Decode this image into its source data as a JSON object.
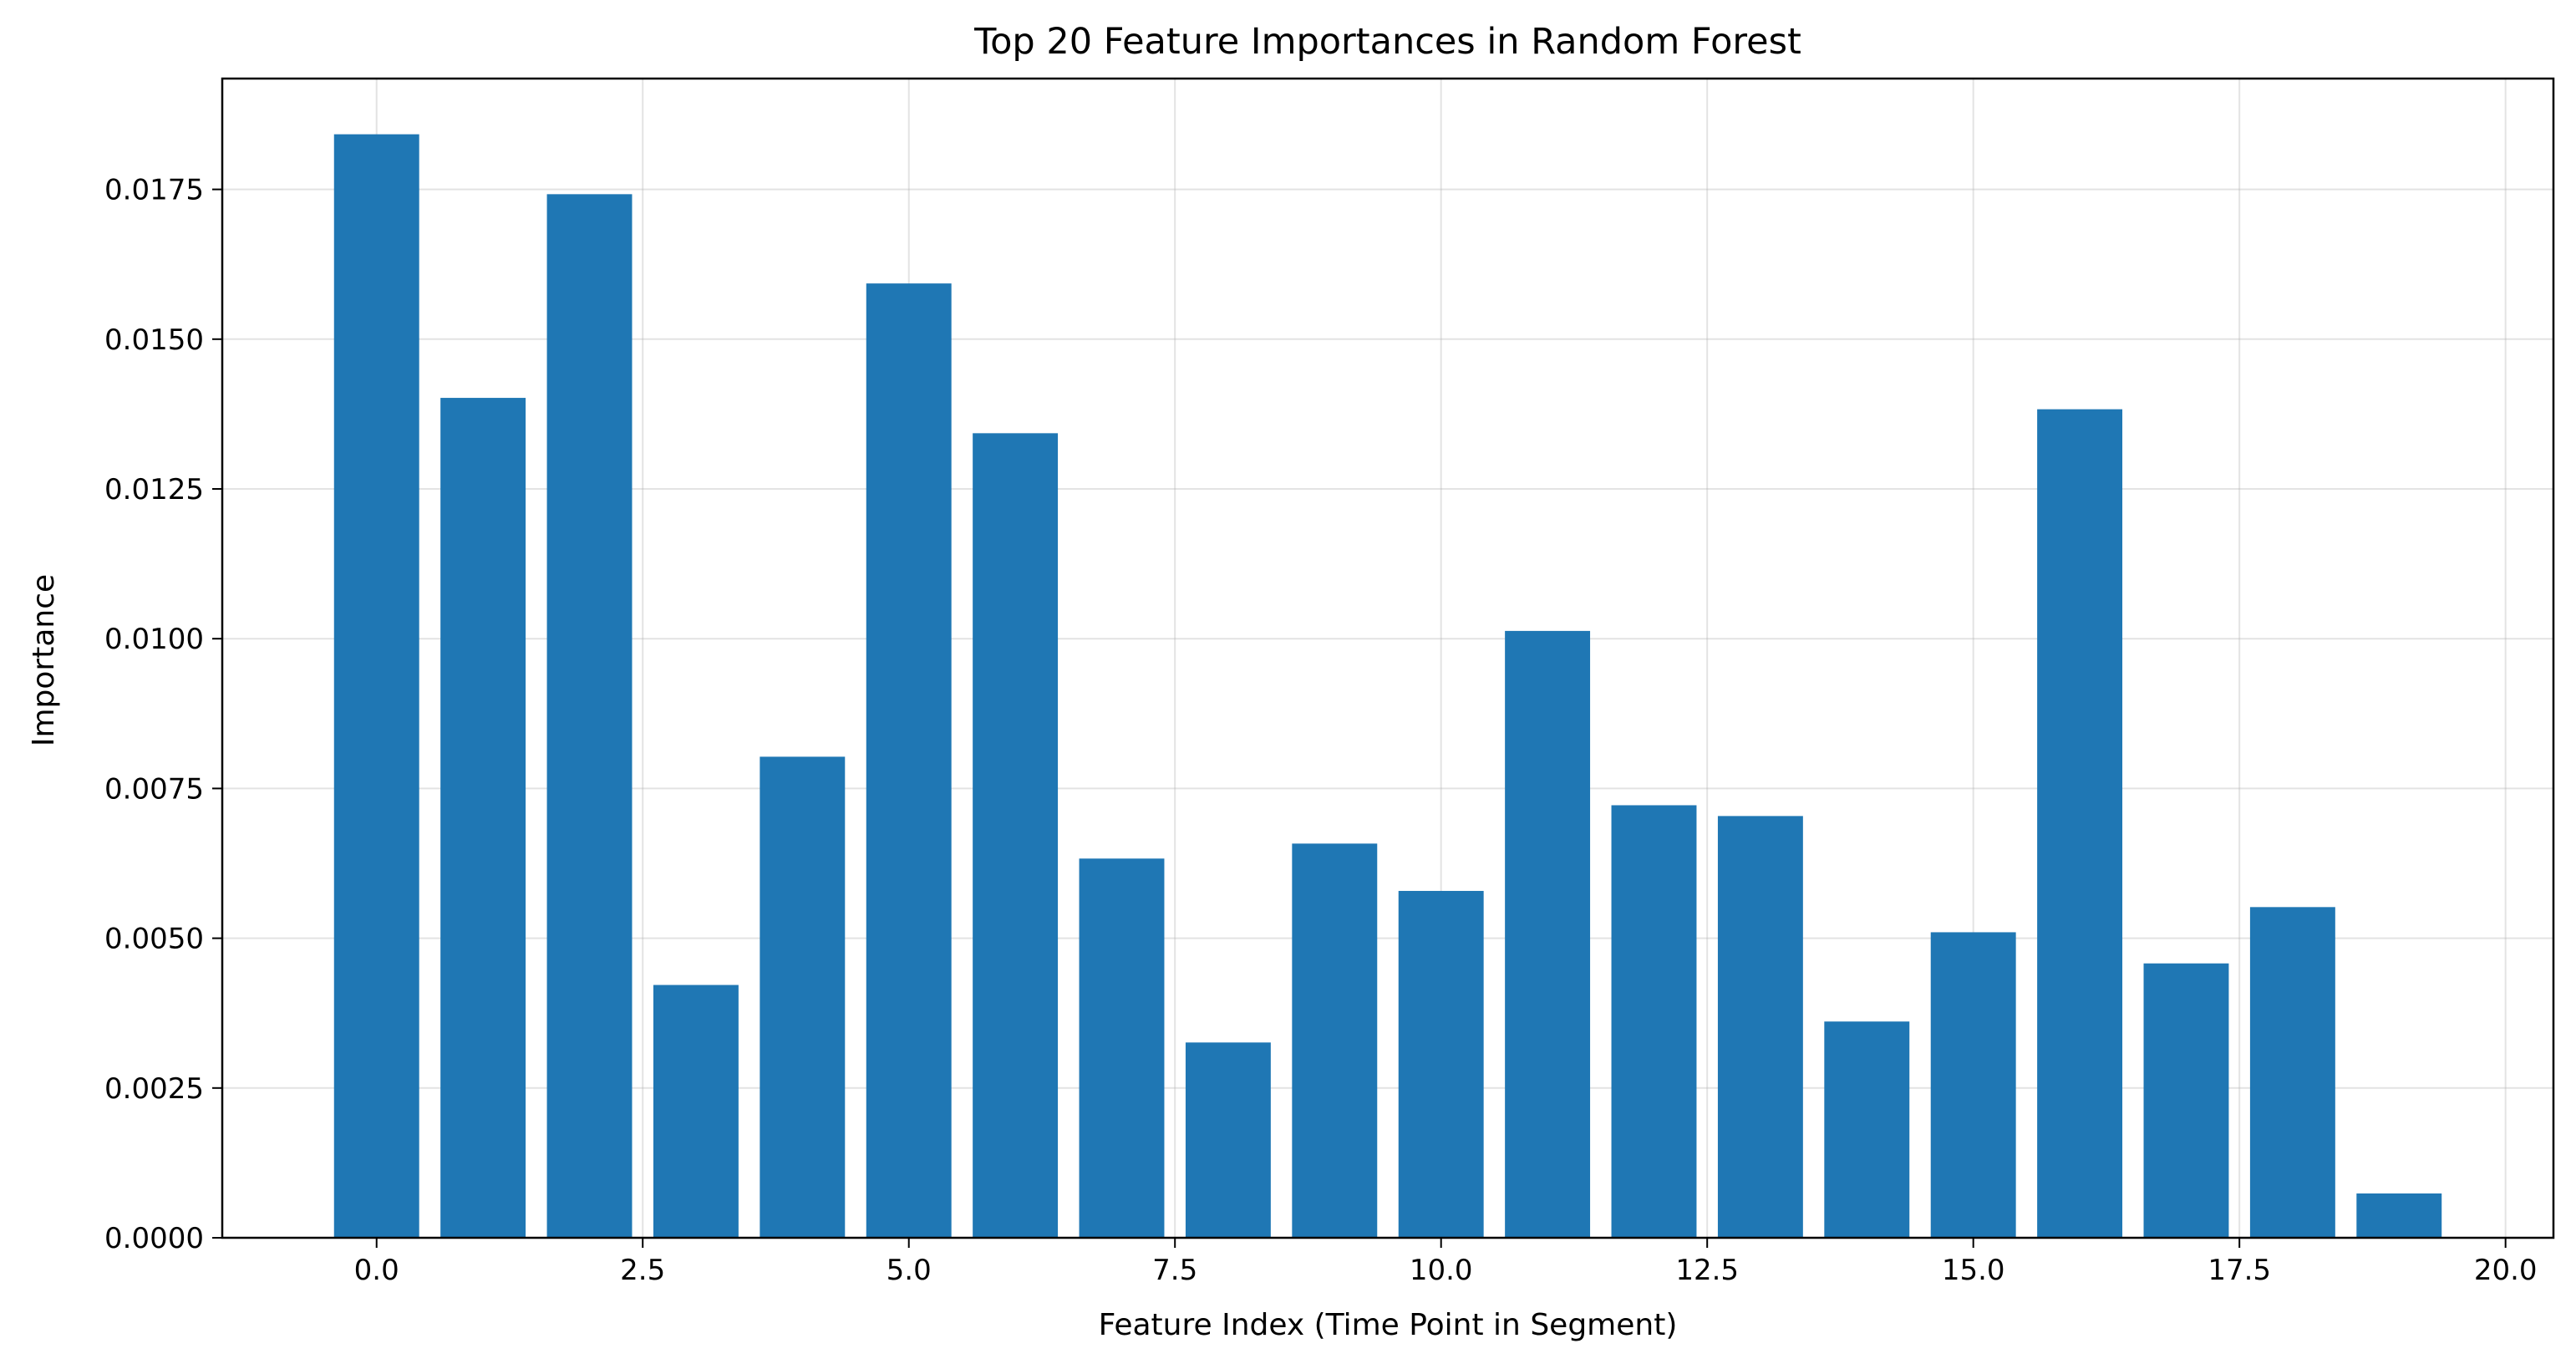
{
  "chart_data": {
    "type": "bar",
    "title": "Top 20 Feature Importances in Random Forest",
    "xlabel": "Feature Index (Time Point in Segment)",
    "ylabel": "Importance",
    "x": [
      0,
      1,
      2,
      3,
      4,
      5,
      6,
      7,
      8,
      9,
      10,
      11,
      12,
      13,
      14,
      15,
      16,
      17,
      18,
      19
    ],
    "values": [
      0.01842,
      0.01402,
      0.01742,
      0.00422,
      0.00803,
      0.01593,
      0.01343,
      0.00633,
      0.00326,
      0.00658,
      0.00579,
      0.01013,
      0.00722,
      0.00704,
      0.00361,
      0.0051,
      0.01383,
      0.00458,
      0.00552,
      0.00074
    ],
    "xlim": [
      -1.45,
      20.45
    ],
    "ylim": [
      0,
      0.01935
    ],
    "xticks": [
      0.0,
      2.5,
      5.0,
      7.5,
      10.0,
      12.5,
      15.0,
      17.5,
      20.0
    ],
    "xtick_labels": [
      "0.0",
      "2.5",
      "5.0",
      "7.5",
      "10.0",
      "12.5",
      "15.0",
      "17.5",
      "20.0"
    ],
    "yticks": [
      0,
      0.0025,
      0.005,
      0.0075,
      0.01,
      0.0125,
      0.015,
      0.0175
    ],
    "ytick_labels": [
      "0.0000",
      "0.0025",
      "0.0050",
      "0.0075",
      "0.0100",
      "0.0125",
      "0.0150",
      "0.0175"
    ],
    "grid": true,
    "bar_color": "#1f77b4",
    "grid_color": "#b0b0b0"
  }
}
